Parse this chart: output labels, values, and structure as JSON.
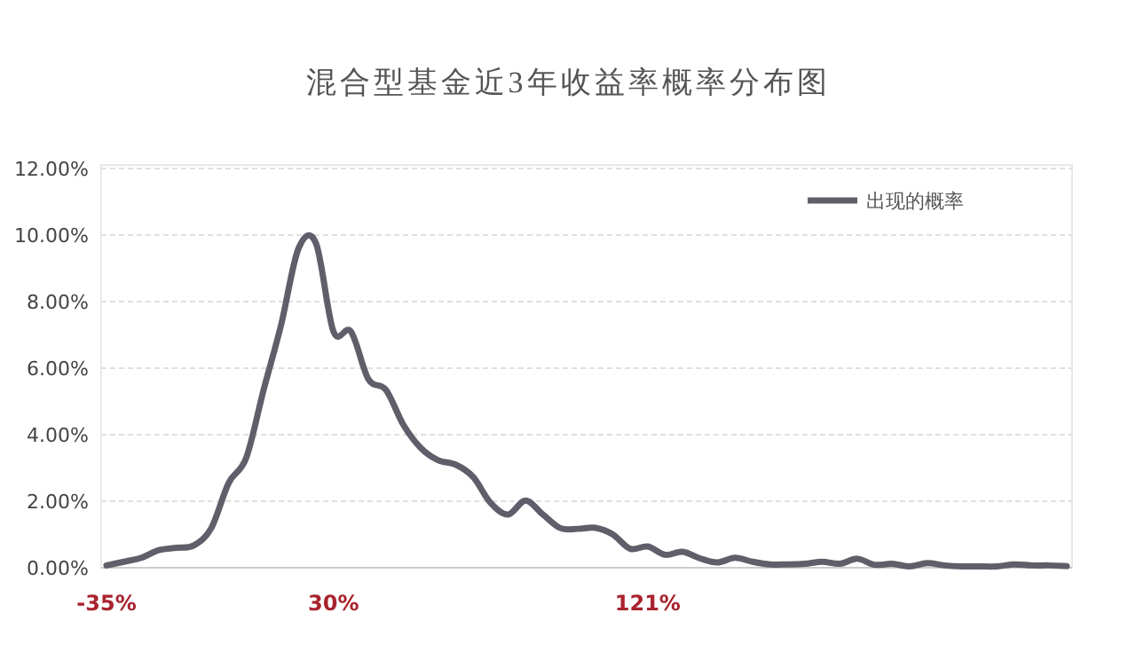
{
  "chart_data": {
    "type": "line",
    "title": "混合型基金近3年收益率概率分布图",
    "categories": [
      "-35%",
      null,
      null,
      null,
      null,
      null,
      null,
      null,
      null,
      null,
      null,
      null,
      null,
      "30%",
      null,
      null,
      null,
      null,
      null,
      null,
      null,
      null,
      null,
      null,
      null,
      null,
      null,
      null,
      null,
      null,
      null,
      "121%",
      null,
      null,
      null,
      null,
      null,
      null,
      null,
      null,
      null,
      null,
      null,
      null,
      null,
      null,
      null,
      null,
      null,
      null,
      null,
      null,
      null,
      null,
      null,
      null
    ],
    "series": [
      {
        "name": "出现的概率",
        "color": "#5f5f6b",
        "values": [
          0.07,
          0.18,
          0.3,
          0.53,
          0.6,
          0.67,
          1.19,
          2.55,
          3.3,
          5.35,
          7.3,
          9.6,
          9.75,
          7.1,
          7.1,
          5.67,
          5.35,
          4.3,
          3.6,
          3.23,
          3.1,
          2.73,
          1.95,
          1.6,
          2.02,
          1.6,
          1.19,
          1.17,
          1.2,
          1.0,
          0.57,
          0.64,
          0.39,
          0.48,
          0.28,
          0.16,
          0.3,
          0.18,
          0.1,
          0.1,
          0.12,
          0.18,
          0.12,
          0.27,
          0.09,
          0.12,
          0.04,
          0.14,
          0.07,
          0.04,
          0.04,
          0.04,
          0.1,
          0.07,
          0.07,
          0.05
        ]
      }
    ],
    "ylim": [
      0,
      12
    ],
    "yticks": [
      {
        "value": 0,
        "label": "0.00%"
      },
      {
        "value": 2,
        "label": "2.00%"
      },
      {
        "value": 4,
        "label": "4.00%"
      },
      {
        "value": 6,
        "label": "6.00%"
      },
      {
        "value": 8,
        "label": "8.00%"
      },
      {
        "value": 10,
        "label": "10.00%"
      },
      {
        "value": 12,
        "label": "12.00%"
      }
    ],
    "grid": "y",
    "legend": "top right",
    "marker": "none",
    "line_style": "solid"
  }
}
